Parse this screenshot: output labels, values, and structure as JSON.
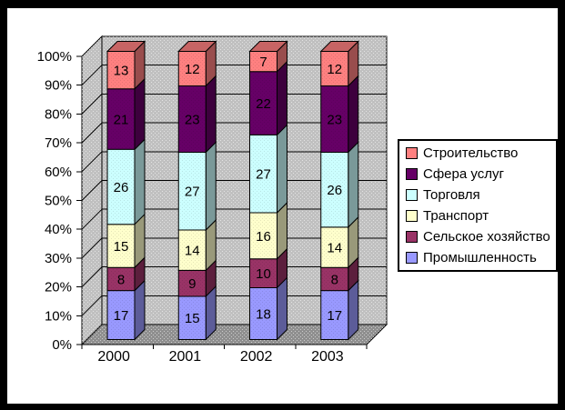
{
  "frame": {
    "border_color": "#000000",
    "background_color": "#FFFFFF"
  },
  "chart_data": {
    "type": "bar",
    "subtype": "3d-stacked-100-percent",
    "title": "",
    "xlabel": "",
    "ylabel": "",
    "categories": [
      "2000",
      "2001",
      "2002",
      "2003"
    ],
    "series": [
      {
        "name": "Промышленность",
        "color": "#9999FF",
        "values": [
          17,
          15,
          18,
          17
        ]
      },
      {
        "name": "Сельское хозяйство",
        "color": "#993366",
        "values": [
          8,
          9,
          10,
          8
        ]
      },
      {
        "name": "Транспорт",
        "color": "#FFFFCC",
        "values": [
          15,
          14,
          16,
          14
        ]
      },
      {
        "name": "Торговля",
        "color": "#CCFFFF",
        "values": [
          26,
          27,
          27,
          26
        ]
      },
      {
        "name": "Сфера услуг",
        "color": "#660066",
        "values": [
          21,
          23,
          22,
          23
        ]
      },
      {
        "name": "Строительство",
        "color": "#FF8080",
        "values": [
          13,
          12,
          7,
          12
        ]
      }
    ],
    "y_ticks": [
      "0%",
      "10%",
      "20%",
      "30%",
      "40%",
      "50%",
      "60%",
      "70%",
      "80%",
      "90%",
      "100%"
    ],
    "ylim": [
      0,
      100
    ],
    "grid": true,
    "legend_position": "right",
    "wall_color": "#C0C0C0",
    "floor_color": "#8F8F8F",
    "gridline_color": "#000000",
    "text_color": "#000000"
  }
}
